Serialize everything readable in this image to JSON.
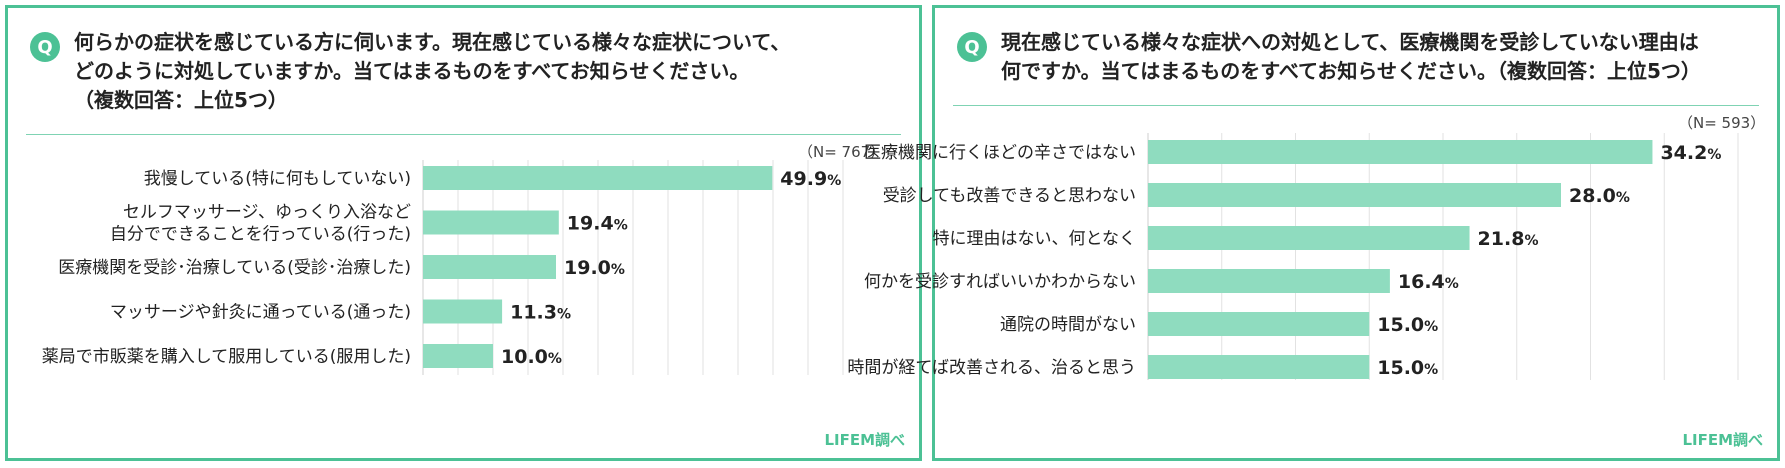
{
  "credit": "LIFEM調べ",
  "charts": [
    {
      "badge": "Q",
      "title": "何らかの症状を感じている方に伺います。現在感じている様々な症状について、\nどのように対処していますか。当てはまるものをすべてお知らせください。\n（複数回答：上位5つ）",
      "n_label": "（N= 767）",
      "chart_data": {
        "type": "bar",
        "orientation": "horizontal",
        "categories": [
          "我慢している(特に何もしていない)",
          "セルフマッサージ、ゆっくり入浴など\n自分でできることを行っている(行った)",
          "医療機関を受診･治療している(受診･治療した)",
          "マッサージや針灸に通っている(通った)",
          "薬局で市販薬を購入して服用している(服用した)"
        ],
        "values": [
          49.9,
          19.4,
          19.0,
          11.3,
          10.0
        ],
        "unit": "%",
        "xlim": [
          0,
          60
        ],
        "grid": true,
        "bar_color": "#8fdcbf"
      }
    },
    {
      "badge": "Q",
      "title": "現在感じている様々な症状への対処として、医療機関を受診していない理由は\n何ですか。当てはまるものをすべてお知らせください。（複数回答：上位5つ）",
      "n_label": "（N= 593）",
      "chart_data": {
        "type": "bar",
        "orientation": "horizontal",
        "categories": [
          "医療機関に行くほどの辛さではない",
          "受診しても改善できると思わない",
          "特に理由はない、何となく",
          "何かを受診すればいいかわからない",
          "通院の時間がない",
          "時間が経てば改善される、治ると思う"
        ],
        "values": [
          34.2,
          28.0,
          21.8,
          16.4,
          15.0,
          15.0
        ],
        "unit": "%",
        "xlim": [
          0,
          40
        ],
        "grid": true,
        "bar_color": "#8fdcbf"
      }
    }
  ]
}
